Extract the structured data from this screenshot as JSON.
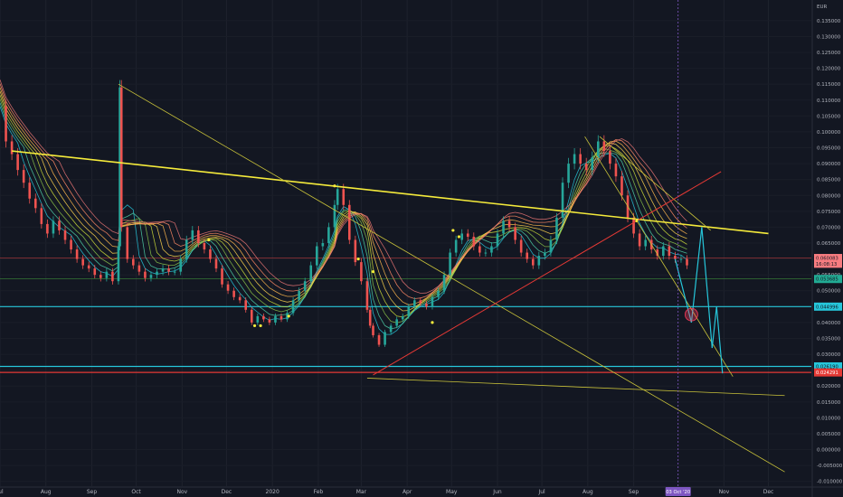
{
  "chart_data": {
    "type": "line",
    "title": "",
    "currency": "EUR",
    "y_ticks": [
      "0.135000",
      "0.130000",
      "0.125000",
      "0.120000",
      "0.115000",
      "0.110000",
      "0.105000",
      "0.100000",
      "0.095000",
      "0.090000",
      "0.085000",
      "0.080000",
      "0.075000",
      "0.070000",
      "0.065000",
      "0.060000",
      "0.055000",
      "0.050000",
      "0.045000",
      "0.040000",
      "0.035000",
      "0.030000",
      "0.025000",
      "0.020000",
      "0.015000",
      "0.010000",
      "0.005000",
      "0.000000",
      "-0.005000",
      "-0.010000"
    ],
    "ylim": [
      -0.0115,
      0.1415
    ],
    "x_ticks": [
      {
        "label": "Jul",
        "t": 0
      },
      {
        "label": "Aug",
        "t": 31
      },
      {
        "label": "Sep",
        "t": 62
      },
      {
        "label": "Oct",
        "t": 92
      },
      {
        "label": "Nov",
        "t": 123
      },
      {
        "label": "Dec",
        "t": 153
      },
      {
        "label": "2020",
        "t": 184
      },
      {
        "label": "Feb",
        "t": 215
      },
      {
        "label": "Mar",
        "t": 244
      },
      {
        "label": "Apr",
        "t": 275
      },
      {
        "label": "May",
        "t": 305
      },
      {
        "label": "Jun",
        "t": 336
      },
      {
        "label": "Jul",
        "t": 366
      },
      {
        "label": "Aug",
        "t": 397
      },
      {
        "label": "Sep",
        "t": 428
      },
      {
        "label": "Nov",
        "t": 489
      },
      {
        "label": "Dec",
        "t": 519
      }
    ],
    "xlim": [
      0,
      548
    ],
    "cursor": {
      "label": "03 Oct '20",
      "t": 458
    },
    "series": [
      {
        "values": [
          [
            0,
            0.108
          ],
          [
            4,
            0.097
          ],
          [
            8,
            0.093
          ],
          [
            12,
            0.088
          ],
          [
            16,
            0.084
          ],
          [
            20,
            0.079
          ],
          [
            24,
            0.076
          ],
          [
            28,
            0.071
          ],
          [
            32,
            0.068
          ],
          [
            36,
            0.072
          ],
          [
            40,
            0.069
          ],
          [
            44,
            0.066
          ],
          [
            48,
            0.063
          ],
          [
            52,
            0.06
          ],
          [
            56,
            0.058
          ],
          [
            60,
            0.057
          ],
          [
            64,
            0.055
          ],
          [
            68,
            0.054
          ],
          [
            72,
            0.056
          ],
          [
            76,
            0.053
          ],
          [
            80,
            0.064
          ],
          [
            81,
            0.114
          ],
          [
            82,
            0.07
          ],
          [
            86,
            0.06
          ],
          [
            90,
            0.058
          ],
          [
            94,
            0.056
          ],
          [
            98,
            0.054
          ],
          [
            102,
            0.055
          ],
          [
            106,
            0.056
          ],
          [
            110,
            0.057
          ],
          [
            114,
            0.056
          ],
          [
            118,
            0.056
          ],
          [
            122,
            0.06
          ],
          [
            126,
            0.066
          ],
          [
            130,
            0.069
          ],
          [
            134,
            0.065
          ],
          [
            138,
            0.063
          ],
          [
            142,
            0.06
          ],
          [
            146,
            0.057
          ],
          [
            150,
            0.052
          ],
          [
            154,
            0.05
          ],
          [
            158,
            0.048
          ],
          [
            162,
            0.047
          ],
          [
            166,
            0.044
          ],
          [
            170,
            0.04
          ],
          [
            174,
            0.042
          ],
          [
            178,
            0.041
          ],
          [
            182,
            0.04
          ],
          [
            186,
            0.042
          ],
          [
            190,
            0.041
          ],
          [
            194,
            0.043
          ],
          [
            198,
            0.047
          ],
          [
            202,
            0.05
          ],
          [
            206,
            0.053
          ],
          [
            210,
            0.058
          ],
          [
            214,
            0.064
          ],
          [
            218,
            0.065
          ],
          [
            222,
            0.07
          ],
          [
            226,
            0.077
          ],
          [
            228,
            0.082
          ],
          [
            232,
            0.077
          ],
          [
            236,
            0.066
          ],
          [
            240,
            0.059
          ],
          [
            244,
            0.053
          ],
          [
            248,
            0.044
          ],
          [
            250,
            0.039
          ],
          [
            252,
            0.036
          ],
          [
            256,
            0.033
          ],
          [
            260,
            0.037
          ],
          [
            264,
            0.039
          ],
          [
            268,
            0.041
          ],
          [
            272,
            0.042
          ],
          [
            276,
            0.045
          ],
          [
            280,
            0.047
          ],
          [
            284,
            0.046
          ],
          [
            288,
            0.045
          ],
          [
            292,
            0.048
          ],
          [
            296,
            0.05
          ],
          [
            300,
            0.055
          ],
          [
            304,
            0.062
          ],
          [
            308,
            0.066
          ],
          [
            312,
            0.068
          ],
          [
            316,
            0.067
          ],
          [
            320,
            0.064
          ],
          [
            324,
            0.062
          ],
          [
            328,
            0.062
          ],
          [
            332,
            0.064
          ],
          [
            336,
            0.068
          ],
          [
            340,
            0.072
          ],
          [
            344,
            0.07
          ],
          [
            348,
            0.066
          ],
          [
            352,
            0.062
          ],
          [
            356,
            0.06
          ],
          [
            360,
            0.058
          ],
          [
            364,
            0.061
          ],
          [
            368,
            0.062
          ],
          [
            372,
            0.066
          ],
          [
            376,
            0.073
          ],
          [
            380,
            0.084
          ],
          [
            384,
            0.09
          ],
          [
            388,
            0.093
          ],
          [
            392,
            0.09
          ],
          [
            396,
            0.088
          ],
          [
            400,
            0.092
          ],
          [
            404,
            0.097
          ],
          [
            408,
            0.094
          ],
          [
            412,
            0.09
          ],
          [
            416,
            0.086
          ],
          [
            420,
            0.08
          ],
          [
            424,
            0.073
          ],
          [
            428,
            0.068
          ],
          [
            432,
            0.064
          ],
          [
            436,
            0.066
          ],
          [
            440,
            0.063
          ],
          [
            444,
            0.061
          ],
          [
            448,
            0.064
          ],
          [
            452,
            0.061
          ],
          [
            456,
            0.06
          ],
          [
            460,
            0.06
          ],
          [
            464,
            0.058
          ]
        ]
      }
    ],
    "ribbon_offsets": [
      0.0,
      0.0012,
      0.0024,
      0.0036,
      0.0048,
      0.006,
      0.0072,
      0.0084
    ],
    "ribbon_colors": [
      "#26c6da",
      "#4dd0a8",
      "#8bc34a",
      "#cddc39",
      "#ffd54f",
      "#ffb74d",
      "#ff8a65",
      "#e57373"
    ],
    "trendlines": [
      {
        "color": "#f5eb3b",
        "width": 1.6,
        "from": [
          8,
          0.094
        ],
        "to": [
          519,
          0.068
        ]
      },
      {
        "color": "#c9c23a",
        "width": 0.8,
        "from": [
          80,
          0.115
        ],
        "to": [
          530,
          -0.007
        ]
      },
      {
        "color": "#c9c23a",
        "width": 0.8,
        "from": [
          248,
          0.0225
        ],
        "to": [
          530,
          0.017
        ]
      },
      {
        "color": "#c9c23a",
        "width": 0.8,
        "from": [
          395,
          0.0985
        ],
        "to": [
          495,
          0.023
        ]
      },
      {
        "color": "#c9c23a",
        "width": 0.8,
        "from": [
          405,
          0.0985
        ],
        "to": [
          480,
          0.069
        ]
      },
      {
        "color": "#e53935",
        "width": 1.0,
        "from": [
          252,
          0.0235
        ],
        "to": [
          487,
          0.0875
        ]
      },
      {
        "color": "#26c6da",
        "width": 1.2,
        "from": [
          456,
          0.06
        ],
        "to": [
          467,
          0.04
        ]
      },
      {
        "color": "#26c6da",
        "width": 1.2,
        "from": [
          467,
          0.04
        ],
        "to": [
          474,
          0.07
        ]
      },
      {
        "color": "#26c6da",
        "width": 1.2,
        "from": [
          474,
          0.07
        ],
        "to": [
          481,
          0.032
        ]
      },
      {
        "color": "#26c6da",
        "width": 1.2,
        "from": [
          481,
          0.032
        ],
        "to": [
          484,
          0.045
        ]
      },
      {
        "color": "#26c6da",
        "width": 1.2,
        "from": [
          484,
          0.045
        ],
        "to": [
          488,
          0.024
        ]
      }
    ],
    "hlines": [
      {
        "value": 0.0603,
        "color": "#b73b3b",
        "width": 0.6
      },
      {
        "value": 0.0537,
        "color": "#3b8a3b",
        "width": 0.6
      },
      {
        "value": 0.045,
        "color": "#26c6da",
        "width": 1.2
      },
      {
        "value": 0.02619,
        "color": "#26c6da",
        "width": 1.2
      },
      {
        "value": 0.02429,
        "color": "#e53935",
        "width": 1.2
      }
    ],
    "price_badges": [
      {
        "label": "0.060083",
        "value": 0.0603,
        "bg": "#f77c80",
        "fg": "#131722"
      },
      {
        "label": "16:08:13",
        "value": 0.0585,
        "bg": "#f77c80",
        "fg": "#131722"
      },
      {
        "label": "0.053685",
        "value": 0.0537,
        "bg": "#22ab94",
        "fg": "#131722"
      },
      {
        "label": "0.044996",
        "value": 0.045,
        "bg": "#26c6da",
        "fg": "#131722"
      },
      {
        "label": "0.026190",
        "value": 0.02619,
        "bg": "#26c6da",
        "fg": "#131722"
      },
      {
        "label": "0.024291",
        "value": 0.02429,
        "bg": "#e53935",
        "fg": "#ffffff"
      }
    ],
    "markers": [
      [
        141,
        0.066
      ],
      [
        226,
        0.083
      ],
      [
        242,
        0.06
      ],
      [
        252,
        0.056
      ],
      [
        306,
        0.069
      ],
      [
        310,
        0.067
      ],
      [
        430,
        0.072
      ],
      [
        172,
        0.039
      ],
      [
        176,
        0.039
      ],
      [
        195,
        0.042
      ],
      [
        292,
        0.04
      ]
    ],
    "circle": {
      "t": 467,
      "value": 0.0425,
      "color": "#ff3b5c"
    }
  }
}
